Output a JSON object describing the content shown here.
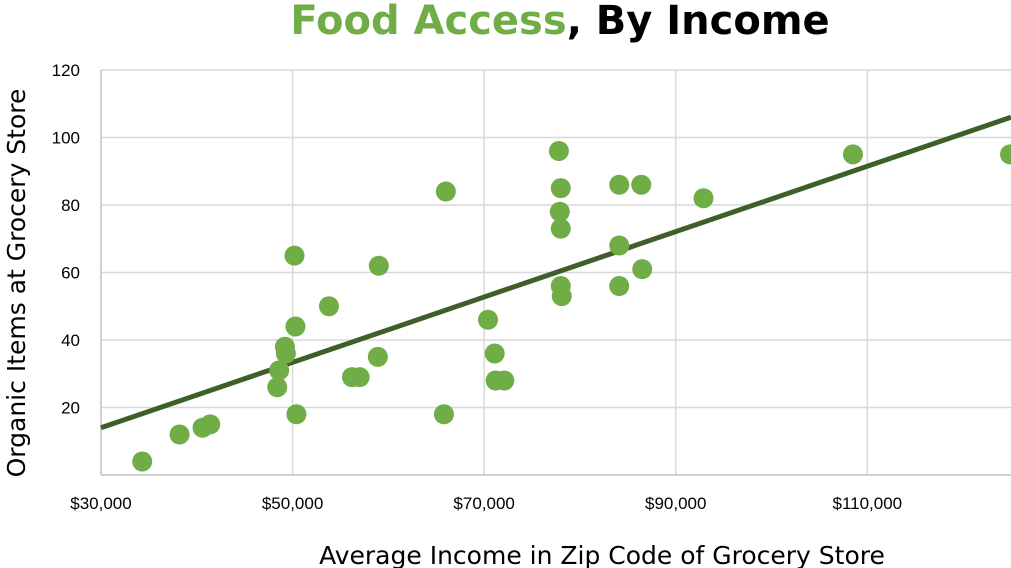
{
  "chart_data": {
    "type": "scatter",
    "title_parts": [
      {
        "text": "Food Access",
        "color": "#70ad47"
      },
      {
        "text": ", By Income",
        "color": "#000000"
      }
    ],
    "xlabel": "Average Income in Zip Code of Grocery Store",
    "ylabel": "Organic Items at Grocery Store",
    "xlim": [
      30000,
      125000
    ],
    "ylim": [
      0,
      120
    ],
    "x_ticks": [
      30000,
      50000,
      70000,
      90000,
      110000
    ],
    "x_tick_labels": [
      "$30,000",
      "$50,000",
      "$70,000",
      "$90,000",
      "$110,000"
    ],
    "y_ticks": [
      20,
      40,
      60,
      80,
      100,
      120
    ],
    "y_tick_labels": [
      "20",
      "40",
      "60",
      "80",
      "100",
      "120"
    ],
    "grid": true,
    "legend": "none",
    "point_color": "#70ad47",
    "trendline_color": "#3f5f2a",
    "trendline": {
      "x": [
        30000,
        125000
      ],
      "y": [
        14,
        106
      ]
    },
    "points": [
      {
        "x": 34300,
        "y": 4
      },
      {
        "x": 38200,
        "y": 12
      },
      {
        "x": 40600,
        "y": 14
      },
      {
        "x": 41400,
        "y": 15
      },
      {
        "x": 48400,
        "y": 26
      },
      {
        "x": 48600,
        "y": 31
      },
      {
        "x": 49200,
        "y": 38
      },
      {
        "x": 49300,
        "y": 36
      },
      {
        "x": 50200,
        "y": 65
      },
      {
        "x": 50300,
        "y": 44
      },
      {
        "x": 50400,
        "y": 18
      },
      {
        "x": 53800,
        "y": 50
      },
      {
        "x": 56200,
        "y": 29
      },
      {
        "x": 57000,
        "y": 29
      },
      {
        "x": 58900,
        "y": 35
      },
      {
        "x": 59000,
        "y": 62
      },
      {
        "x": 65800,
        "y": 18
      },
      {
        "x": 66000,
        "y": 84
      },
      {
        "x": 70400,
        "y": 46
      },
      {
        "x": 71100,
        "y": 36
      },
      {
        "x": 71200,
        "y": 28
      },
      {
        "x": 72100,
        "y": 28
      },
      {
        "x": 77800,
        "y": 96
      },
      {
        "x": 78000,
        "y": 85
      },
      {
        "x": 77900,
        "y": 78
      },
      {
        "x": 78000,
        "y": 73
      },
      {
        "x": 78000,
        "y": 56
      },
      {
        "x": 78100,
        "y": 53
      },
      {
        "x": 84100,
        "y": 86
      },
      {
        "x": 84100,
        "y": 68
      },
      {
        "x": 84100,
        "y": 56
      },
      {
        "x": 86400,
        "y": 86
      },
      {
        "x": 86500,
        "y": 61
      },
      {
        "x": 92900,
        "y": 82
      },
      {
        "x": 108500,
        "y": 95
      },
      {
        "x": 124900,
        "y": 95
      }
    ]
  }
}
